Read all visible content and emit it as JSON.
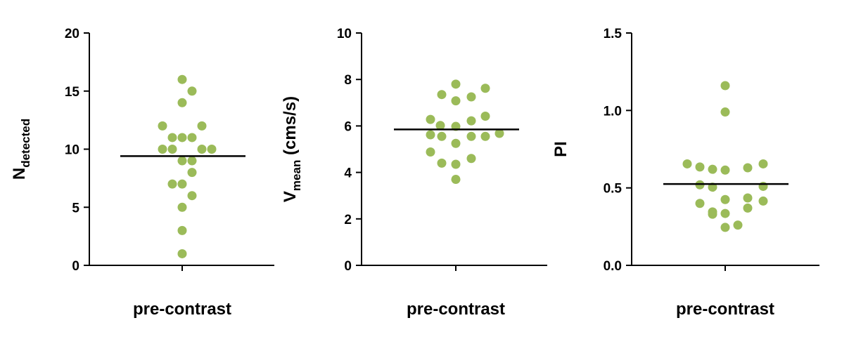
{
  "colors": {
    "point": "#9bbb59",
    "axis": "#000000",
    "mean_line": "#000000"
  },
  "chart_data": [
    {
      "type": "scatter",
      "category": "pre-contrast",
      "xlabel": "pre-contrast",
      "ylabel": {
        "main": "N",
        "sub": "detected",
        "suffix": ""
      },
      "ylim": [
        0,
        20
      ],
      "yticks": [
        0,
        5,
        10,
        15,
        20
      ],
      "ytick_labels": [
        "0",
        "5",
        "10",
        "15",
        "20"
      ],
      "mean": 9.4,
      "points": [
        {
          "x": 0.0,
          "y": 16
        },
        {
          "x": 0.35,
          "y": 15
        },
        {
          "x": 0.0,
          "y": 14
        },
        {
          "x": -0.7,
          "y": 12
        },
        {
          "x": 0.7,
          "y": 12
        },
        {
          "x": -0.35,
          "y": 11
        },
        {
          "x": 0.0,
          "y": 11
        },
        {
          "x": 0.35,
          "y": 11
        },
        {
          "x": -0.7,
          "y": 10
        },
        {
          "x": -0.35,
          "y": 10
        },
        {
          "x": 0.7,
          "y": 10
        },
        {
          "x": 1.05,
          "y": 10
        },
        {
          "x": 0.0,
          "y": 9
        },
        {
          "x": 0.35,
          "y": 9
        },
        {
          "x": 0.35,
          "y": 8
        },
        {
          "x": -0.35,
          "y": 7
        },
        {
          "x": 0.0,
          "y": 7
        },
        {
          "x": 0.35,
          "y": 6
        },
        {
          "x": 0.0,
          "y": 5
        },
        {
          "x": 0.0,
          "y": 3
        },
        {
          "x": 0.0,
          "y": 1
        }
      ]
    },
    {
      "type": "scatter",
      "category": "pre-contrast",
      "xlabel": "pre-contrast",
      "ylabel": {
        "main": "V",
        "sub": "mean",
        "suffix": " (cms/s)"
      },
      "ylim": [
        0,
        10
      ],
      "yticks": [
        0,
        2,
        4,
        6,
        8,
        10
      ],
      "ytick_labels": [
        "0",
        "2",
        "4",
        "6",
        "8",
        "10"
      ],
      "mean": 5.85,
      "points": [
        {
          "x": 0.0,
          "y": 7.8
        },
        {
          "x": 1.05,
          "y": 7.62
        },
        {
          "x": -0.5,
          "y": 7.35
        },
        {
          "x": 0.55,
          "y": 7.25
        },
        {
          "x": 0.0,
          "y": 7.08
        },
        {
          "x": 1.05,
          "y": 6.42
        },
        {
          "x": -0.9,
          "y": 6.28
        },
        {
          "x": 0.55,
          "y": 6.22
        },
        {
          "x": -0.55,
          "y": 6.02
        },
        {
          "x": 0.0,
          "y": 5.98
        },
        {
          "x": 1.55,
          "y": 5.68
        },
        {
          "x": -0.9,
          "y": 5.62
        },
        {
          "x": 0.55,
          "y": 5.55
        },
        {
          "x": 1.05,
          "y": 5.55
        },
        {
          "x": -0.5,
          "y": 5.55
        },
        {
          "x": 0.0,
          "y": 5.25
        },
        {
          "x": -0.9,
          "y": 4.88
        },
        {
          "x": 0.55,
          "y": 4.6
        },
        {
          "x": -0.5,
          "y": 4.4
        },
        {
          "x": 0.0,
          "y": 4.35
        },
        {
          "x": 0.0,
          "y": 3.7
        }
      ]
    },
    {
      "type": "scatter",
      "category": "pre-contrast",
      "xlabel": "pre-contrast",
      "ylabel": {
        "main": "PI",
        "sub": "",
        "suffix": ""
      },
      "ylim": [
        0,
        1.5
      ],
      "yticks": [
        0,
        0.5,
        1.0,
        1.5
      ],
      "ytick_labels": [
        "0.0",
        "0.5",
        "1.0",
        "1.5"
      ],
      "mean": 0.525,
      "points": [
        {
          "x": 0.0,
          "y": 1.16
        },
        {
          "x": 0.0,
          "y": 0.99
        },
        {
          "x": -1.35,
          "y": 0.655
        },
        {
          "x": 1.35,
          "y": 0.655
        },
        {
          "x": -0.9,
          "y": 0.635
        },
        {
          "x": 0.8,
          "y": 0.63
        },
        {
          "x": -0.45,
          "y": 0.62
        },
        {
          "x": 0.0,
          "y": 0.615
        },
        {
          "x": -0.9,
          "y": 0.52
        },
        {
          "x": -0.45,
          "y": 0.505
        },
        {
          "x": 1.35,
          "y": 0.51
        },
        {
          "x": 0.0,
          "y": 0.425
        },
        {
          "x": 0.8,
          "y": 0.435
        },
        {
          "x": 1.35,
          "y": 0.415
        },
        {
          "x": -0.9,
          "y": 0.4
        },
        {
          "x": 0.8,
          "y": 0.37
        },
        {
          "x": -0.45,
          "y": 0.345
        },
        {
          "x": 0.0,
          "y": 0.335
        },
        {
          "x": -0.45,
          "y": 0.33
        },
        {
          "x": 0.0,
          "y": 0.245
        },
        {
          "x": 0.45,
          "y": 0.26
        }
      ]
    }
  ]
}
